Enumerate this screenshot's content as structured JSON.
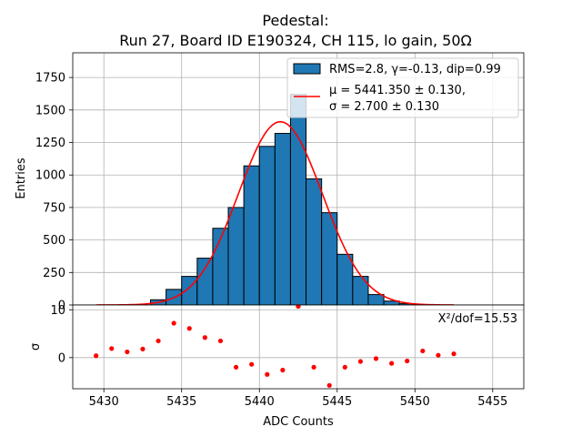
{
  "chart_data": {
    "type": "bar",
    "title_line1": "Pedestal:",
    "title_line2": "Run 27, Board ID E190324, CH 115, lo gain, 50Ω",
    "xlabel": "ADC Counts",
    "top_ylabel": "Entries",
    "bottom_ylabel": "σ",
    "xlim": [
      5428,
      5457
    ],
    "top_ylim": [
      0,
      1940
    ],
    "bottom_ylim": [
      -6.5,
      11
    ],
    "x_ticks": [
      5430,
      5435,
      5440,
      5445,
      5450,
      5455
    ],
    "x_tick_labels": [
      "5430",
      "5435",
      "5440",
      "5445",
      "5450",
      "5455"
    ],
    "top_y_ticks": [
      0,
      250,
      500,
      750,
      1000,
      1250,
      1500,
      1750
    ],
    "top_y_tick_labels": [
      "0",
      "250",
      "500",
      "750",
      "1000",
      "1250",
      "1500",
      "1750"
    ],
    "bottom_y_ticks": [
      0,
      10
    ],
    "bottom_y_tick_labels": [
      "0",
      "10"
    ],
    "grid": true,
    "histogram": {
      "name": "RMS=2.8, γ=-0.13, dip=0.99",
      "color": "#1f77b4",
      "edgecolor": "#000000",
      "bin_width": 1,
      "bin_starts": [
        5433,
        5434,
        5435,
        5436,
        5437,
        5438,
        5439,
        5440,
        5441,
        5442,
        5443,
        5444,
        5445,
        5446,
        5447,
        5448,
        5449
      ],
      "values": [
        40,
        120,
        220,
        360,
        590,
        750,
        1070,
        1220,
        1320,
        1620,
        970,
        710,
        390,
        220,
        80,
        30,
        10
      ]
    },
    "fit": {
      "name_line1": "μ = 5441.350 ± 0.130,",
      "name_line2": "σ = 2.700 ± 0.130",
      "color": "#ff0000",
      "mu": 5441.35,
      "sigma": 2.7,
      "amplitude": 1410,
      "x_range": [
        5429.5,
        5452.5
      ]
    },
    "residuals": {
      "color": "#ff0000",
      "annotation": "X²/dof=15.53",
      "x": [
        5429.5,
        5430.5,
        5431.5,
        5432.5,
        5433.5,
        5434.5,
        5435.5,
        5436.5,
        5437.5,
        5438.5,
        5439.5,
        5440.5,
        5441.5,
        5442.5,
        5443.5,
        5444.5,
        5445.5,
        5446.5,
        5447.5,
        5448.5,
        5449.5,
        5450.5,
        5451.5,
        5452.5
      ],
      "y": [
        0.4,
        1.9,
        1.2,
        1.8,
        3.5,
        7.2,
        6.1,
        4.2,
        3.5,
        -2.0,
        -1.4,
        -3.5,
        -2.6,
        10.7,
        -2.0,
        -5.8,
        -2.0,
        -0.8,
        -0.2,
        -1.2,
        -0.7,
        1.4,
        0.5,
        0.8
      ]
    },
    "legend_position": "top-right"
  }
}
